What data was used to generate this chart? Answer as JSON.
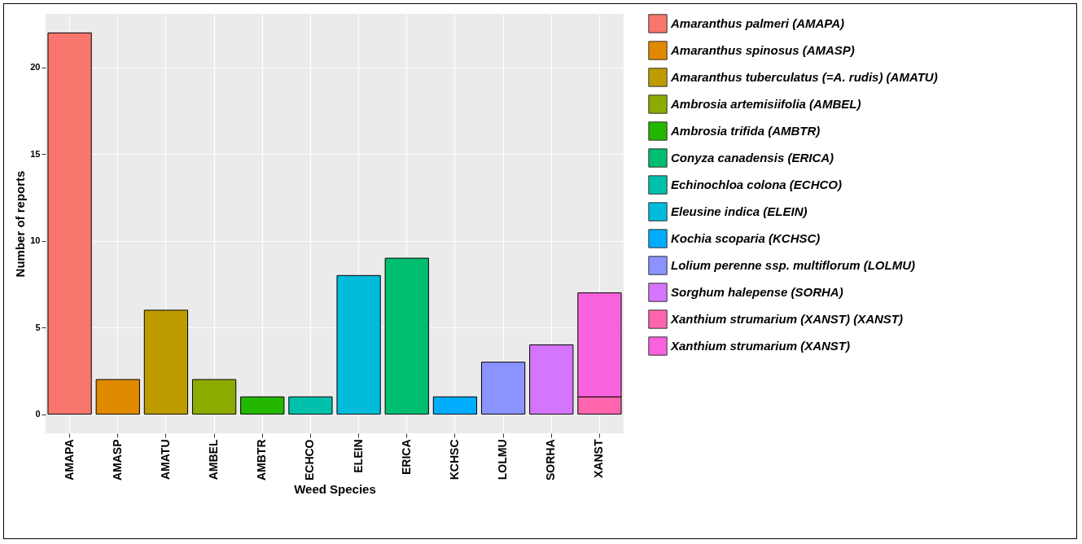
{
  "chart_data": {
    "type": "bar",
    "stacked": true,
    "xlabel": "Weed Species",
    "ylabel": "Number of reports",
    "categories": [
      "AMAPA",
      "AMASP",
      "AMATU",
      "AMBEL",
      "AMBTR",
      "ECHCO",
      "ELEIN",
      "ERICA",
      "KCHSC",
      "LOLMU",
      "SORHA",
      "XANST"
    ],
    "series": [
      {
        "name": "Amaranthus palmeri (AMAPA)",
        "color": "#f8766d",
        "values": [
          22,
          null,
          null,
          null,
          null,
          null,
          null,
          null,
          null,
          null,
          null,
          null
        ]
      },
      {
        "name": "Amaranthus spinosus (AMASP)",
        "color": "#e18a00",
        "values": [
          null,
          2,
          null,
          null,
          null,
          null,
          null,
          null,
          null,
          null,
          null,
          null
        ]
      },
      {
        "name": "Amaranthus tuberculatus (=A. rudis) (AMATU)",
        "color": "#be9c00",
        "values": [
          null,
          null,
          6,
          null,
          null,
          null,
          null,
          null,
          null,
          null,
          null,
          null
        ]
      },
      {
        "name": "Ambrosia artemisiifolia (AMBEL)",
        "color": "#8cab00",
        "values": [
          null,
          null,
          null,
          2,
          null,
          null,
          null,
          null,
          null,
          null,
          null,
          null
        ]
      },
      {
        "name": "Ambrosia trifida (AMBTR)",
        "color": "#24b700",
        "values": [
          null,
          null,
          null,
          null,
          1,
          null,
          null,
          null,
          null,
          null,
          null,
          null
        ]
      },
      {
        "name": "Conyza canadensis (ERICA)",
        "color": "#00be70",
        "values": [
          null,
          null,
          null,
          null,
          null,
          null,
          null,
          9,
          null,
          null,
          null,
          null
        ]
      },
      {
        "name": "Echinochloa colona (ECHCO)",
        "color": "#00c1ab",
        "values": [
          null,
          null,
          null,
          null,
          null,
          1,
          null,
          null,
          null,
          null,
          null,
          null
        ]
      },
      {
        "name": "Eleusine indica (ELEIN)",
        "color": "#00bbda",
        "values": [
          null,
          null,
          null,
          null,
          null,
          null,
          8,
          null,
          null,
          null,
          null,
          null
        ]
      },
      {
        "name": "Kochia scoparia (KCHSC)",
        "color": "#00acfc",
        "values": [
          null,
          null,
          null,
          null,
          null,
          null,
          null,
          null,
          1,
          null,
          null,
          null
        ]
      },
      {
        "name": "Lolium perenne ssp. multiflorum (LOLMU)",
        "color": "#8b93ff",
        "values": [
          null,
          null,
          null,
          null,
          null,
          null,
          null,
          null,
          null,
          3,
          null,
          null
        ]
      },
      {
        "name": "Sorghum halepense (SORHA)",
        "color": "#d575fe",
        "values": [
          null,
          null,
          null,
          null,
          null,
          null,
          null,
          null,
          null,
          null,
          4,
          null
        ]
      },
      {
        "name": "Xanthium strumarium (XANST) (XANST)",
        "color": "#ff65ac",
        "values": [
          null,
          null,
          null,
          null,
          null,
          null,
          null,
          null,
          null,
          null,
          null,
          1
        ]
      },
      {
        "name": "Xanthium strumarium (XANST)",
        "color": "#f962dd",
        "values": [
          null,
          null,
          null,
          null,
          null,
          null,
          null,
          null,
          null,
          null,
          null,
          6
        ]
      }
    ],
    "ylim": [
      -1.1,
      23.1
    ],
    "yticks": [
      0,
      5,
      10,
      15,
      20
    ],
    "grid": true,
    "legend": "right"
  }
}
